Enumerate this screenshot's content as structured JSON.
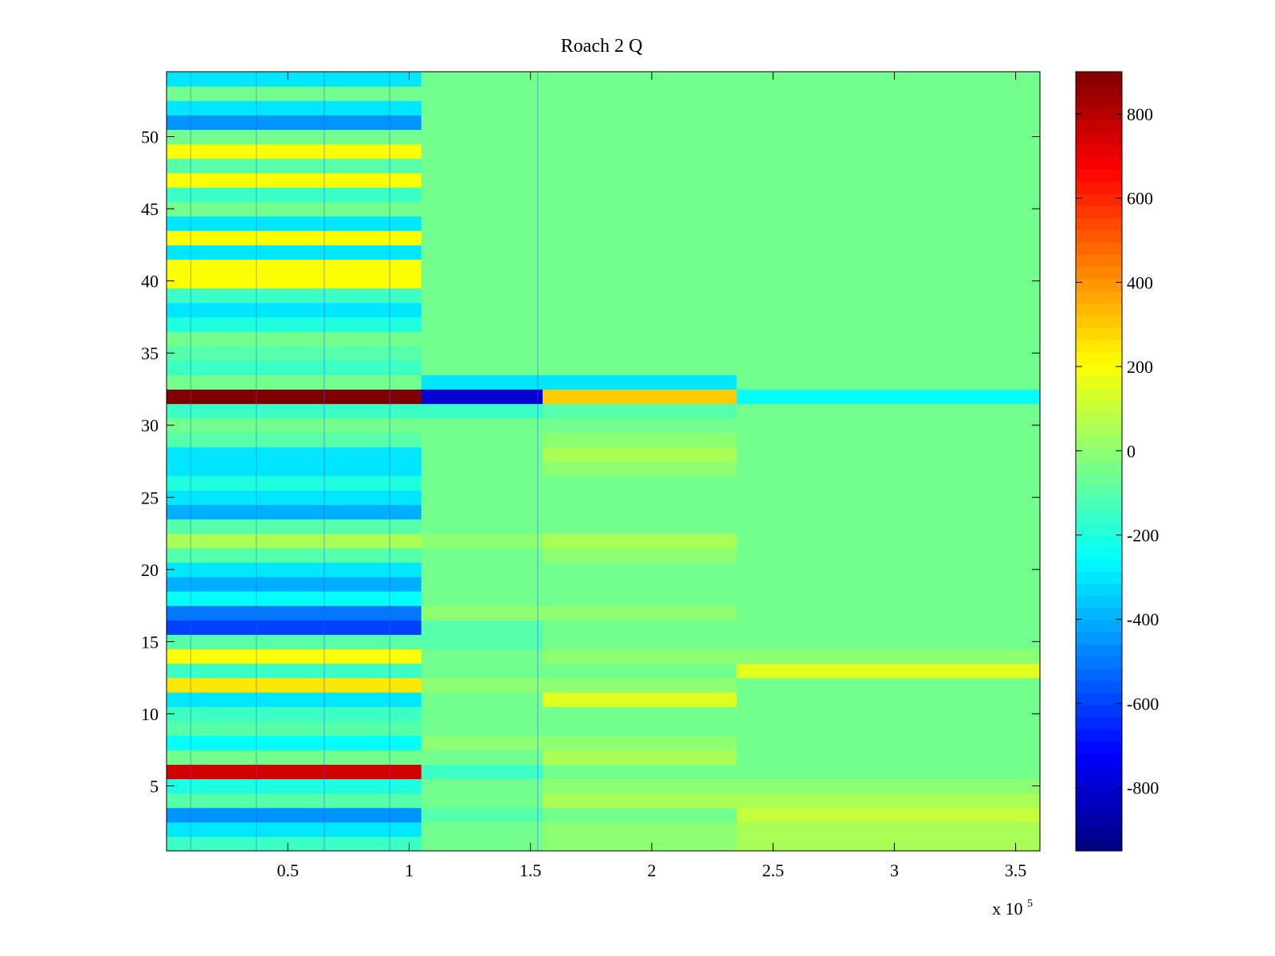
{
  "chart_data": {
    "type": "heatmap",
    "title": "Roach 2 Q",
    "xlabel": "",
    "ylabel": "",
    "x_exponent_label": {
      "base": "x 10",
      "exponent": "5"
    },
    "x_range": [
      0,
      360000
    ],
    "xlim": [
      0,
      3.6
    ],
    "ylim": [
      0.5,
      54.5
    ],
    "x_ticks": [
      0.5,
      1,
      1.5,
      2,
      2.5,
      3,
      3.5
    ],
    "x_tick_labels": [
      "0.5",
      "1",
      "1.5",
      "2",
      "2.5",
      "3",
      "3.5"
    ],
    "y_ticks": [
      5,
      10,
      15,
      20,
      25,
      30,
      35,
      40,
      45,
      50
    ],
    "y_tick_labels": [
      "5",
      "10",
      "15",
      "20",
      "25",
      "30",
      "35",
      "40",
      "45",
      "50"
    ],
    "colormap": "jet",
    "clim": [
      -950,
      900
    ],
    "colorbar_ticks": [
      800,
      600,
      400,
      200,
      0,
      -200,
      -400,
      -600,
      -800
    ],
    "colorbar_tick_labels": [
      "800",
      "600",
      "400",
      "200",
      "0",
      "-200",
      "-400",
      "-600",
      "-800"
    ],
    "rows": 54,
    "x_segment_edges": [
      0,
      1.05,
      1.55,
      2.35,
      3.6
    ],
    "segments": [
      {
        "x_range": [
          0,
          1.05
        ],
        "row_values": [
          -150,
          -300,
          -450,
          -100,
          -200,
          750,
          -50,
          -250,
          -100,
          -150,
          -300,
          250,
          -150,
          200,
          -100,
          -600,
          -500,
          -250,
          -400,
          -300,
          -100,
          50,
          -100,
          -400,
          -300,
          -200,
          -300,
          -300,
          -100,
          -50,
          -150,
          900,
          -50,
          -150,
          -100,
          -50,
          -200,
          -300,
          -150,
          200,
          200,
          -300,
          200,
          -300,
          -50,
          -150,
          200,
          -100,
          200,
          -50,
          -450,
          -300,
          -50,
          -300
        ]
      },
      {
        "x_range": [
          1.05,
          1.55
        ],
        "row_values": [
          -50,
          -50,
          -100,
          -50,
          -50,
          -150,
          -50,
          0,
          -50,
          -50,
          -50,
          0,
          -50,
          -50,
          -100,
          -100,
          0,
          -50,
          -50,
          -50,
          -50,
          0,
          -50,
          -50,
          -50,
          -50,
          -50,
          -50,
          -50,
          -50,
          -150,
          -800,
          -300,
          -50,
          -50,
          -50,
          -50,
          -50,
          -50,
          -50,
          -50,
          -50,
          -50,
          -50,
          -50,
          -50,
          -50,
          -50,
          -50,
          -50,
          -50,
          -50,
          -50,
          -50
        ]
      },
      {
        "x_range": [
          1.55,
          2.35
        ],
        "row_values": [
          0,
          0,
          -50,
          50,
          0,
          -50,
          50,
          0,
          -50,
          -50,
          150,
          0,
          -50,
          0,
          -50,
          -50,
          0,
          -50,
          -50,
          -50,
          0,
          50,
          -50,
          -50,
          -50,
          -50,
          0,
          50,
          0,
          -50,
          -100,
          300,
          -300,
          -50,
          -50,
          -50,
          -50,
          -50,
          -50,
          -50,
          -50,
          -50,
          -50,
          -50,
          -50,
          -50,
          -50,
          -50,
          -50,
          -50,
          -50,
          -50,
          -50,
          -50
        ]
      },
      {
        "x_range": [
          2.35,
          3.6
        ],
        "row_values": [
          50,
          50,
          100,
          50,
          0,
          -50,
          -50,
          -50,
          -50,
          -50,
          -50,
          -50,
          150,
          0,
          -50,
          -50,
          -50,
          -50,
          -50,
          -50,
          -50,
          -50,
          -50,
          -50,
          -50,
          -50,
          -50,
          -50,
          -50,
          -50,
          -50,
          -250,
          -50,
          -50,
          -50,
          -50,
          -50,
          -50,
          -50,
          -50,
          -50,
          -50,
          -50,
          -50,
          -50,
          -50,
          -50,
          -50,
          -50,
          -50,
          -50,
          -50,
          -50,
          -50
        ]
      }
    ],
    "vertical_streaks_x": [
      0.1,
      0.37,
      0.65,
      0.92,
      1.53
    ],
    "grid": false,
    "legend": "colorbar-right"
  }
}
